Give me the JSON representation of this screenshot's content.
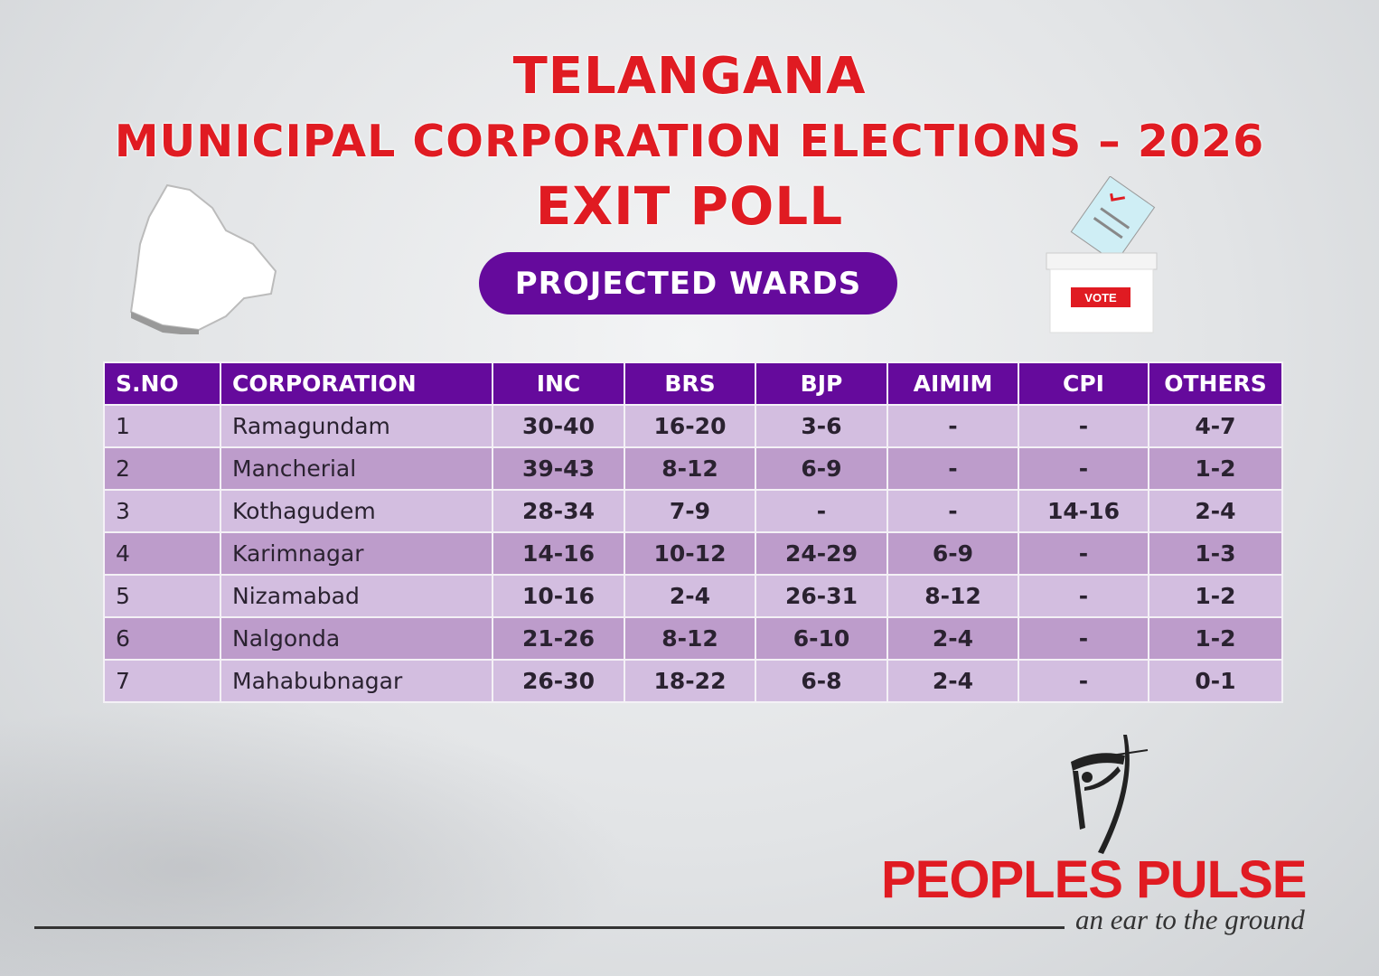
{
  "header": {
    "title_line1": "TELANGANA",
    "title_line2": "MUNICIPAL CORPORATION ELECTIONS – 2026",
    "title_line3": "EXIT POLL",
    "badge": "PROJECTED WARDS"
  },
  "ballot_box": {
    "label": "VOTE"
  },
  "table": {
    "headers": [
      "S.NO",
      "CORPORATION",
      "INC",
      "BRS",
      "BJP",
      "AIMIM",
      "CPI",
      "OTHERS"
    ],
    "rows": [
      [
        "1",
        "Ramagundam",
        "30-40",
        "16-20",
        "3-6",
        "-",
        "-",
        "4-7"
      ],
      [
        "2",
        "Mancherial",
        "39-43",
        "8-12",
        "6-9",
        "-",
        "-",
        "1-2"
      ],
      [
        "3",
        "Kothagudem",
        "28-34",
        "7-9",
        "-",
        "-",
        "14-16",
        "2-4"
      ],
      [
        "4",
        "Karimnagar",
        "14-16",
        "10-12",
        "24-29",
        "6-9",
        "-",
        "1-3"
      ],
      [
        "5",
        "Nizamabad",
        "10-16",
        "2-4",
        "26-31",
        "8-12",
        "-",
        "1-2"
      ],
      [
        "6",
        "Nalgonda",
        "21-26",
        "8-12",
        "6-10",
        "2-4",
        "-",
        "1-2"
      ],
      [
        "7",
        "Mahabubnagar",
        "26-30",
        "18-22",
        "6-8",
        "2-4",
        "-",
        "0-1"
      ]
    ]
  },
  "footer": {
    "brand": "PEOPLES PULSE",
    "tagline": "an ear to the ground"
  },
  "colors": {
    "title_red": "#e01b22",
    "purple": "#650a9c",
    "row_light": "#d3bee0",
    "row_dark": "#bd9ccb"
  }
}
